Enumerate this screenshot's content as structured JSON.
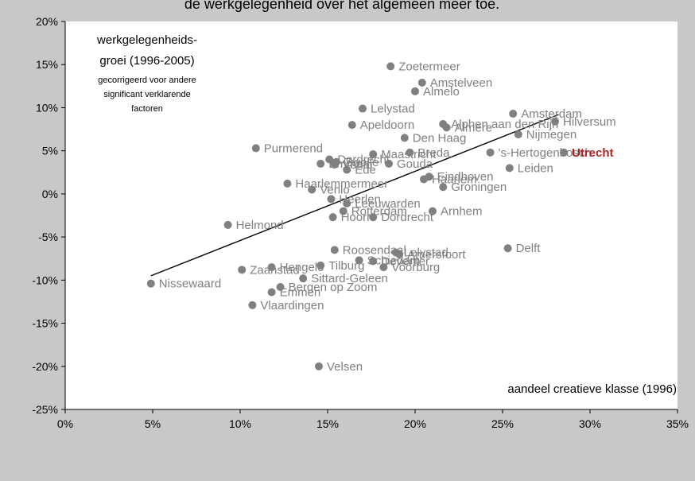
{
  "header_fragment": "de werkgelegenheid over het algemeen meer toe.",
  "annotation": {
    "line1": "werkgelegenheids-",
    "line2": "groei (1996-2005)",
    "note1": "gecorrigeerd voor andere",
    "note2": "significant verklarende",
    "note3": "factoren"
  },
  "colors": {
    "background": "#c8c8c8",
    "plot_area": "#ffffff",
    "point": "#808080",
    "point_label": "#808080",
    "highlight": "#b22222",
    "trendline": "#000000"
  },
  "chart_data": {
    "type": "scatter",
    "xlabel": "aandeel creatieve klasse (1996)",
    "ylabel": "werkgelegenheidsgroei (1996-2005)",
    "xlim": [
      0,
      35
    ],
    "ylim": [
      -25,
      20
    ],
    "x_ticks": [
      "0%",
      "5%",
      "10%",
      "15%",
      "20%",
      "25%",
      "30%",
      "35%"
    ],
    "y_ticks": [
      "20%",
      "15%",
      "10%",
      "5%",
      "0%",
      "-5%",
      "-10%",
      "-15%",
      "-20%",
      "-25%"
    ],
    "grid": false,
    "trendline": {
      "x": [
        4.9,
        28.2
      ],
      "y": [
        -9.5,
        9.2
      ]
    },
    "points": [
      {
        "label": "Zoetermeer",
        "x": 18.6,
        "y": 14.8
      },
      {
        "label": "Amstelveen",
        "x": 20.4,
        "y": 12.9
      },
      {
        "label": "Almelo",
        "x": 20.0,
        "y": 11.9
      },
      {
        "label": "Lelystad",
        "x": 17.0,
        "y": 9.9
      },
      {
        "label": "Alphen aan den Rijn",
        "x": 21.6,
        "y": 8.1
      },
      {
        "label": "Amsterdam",
        "x": 25.6,
        "y": 9.3
      },
      {
        "label": "Hilversum",
        "x": 28.0,
        "y": 8.4
      },
      {
        "label": "Apeldoorn",
        "x": 16.4,
        "y": 8.0
      },
      {
        "label": "Almere",
        "x": 21.8,
        "y": 7.7
      },
      {
        "label": "Nijmegen",
        "x": 25.9,
        "y": 6.9
      },
      {
        "label": "Den Haag",
        "x": 19.4,
        "y": 6.5
      },
      {
        "label": "Purmerend",
        "x": 10.9,
        "y": 5.3
      },
      {
        "label": "Breda",
        "x": 19.7,
        "y": 4.8
      },
      {
        "label": "Maastricht",
        "x": 17.6,
        "y": 4.6
      },
      {
        "label": "'s-Hertogenbosch",
        "x": 24.3,
        "y": 4.8
      },
      {
        "label": "Utrecht",
        "x": 28.5,
        "y": 4.8,
        "highlight": true
      },
      {
        "label": "Dordrecht",
        "x": 15.1,
        "y": 4.0
      },
      {
        "label": "Gouda",
        "x": 18.5,
        "y": 3.5
      },
      {
        "label": "Zwolle",
        "x": 15.5,
        "y": 3.7
      },
      {
        "label": "Leiden",
        "x": 25.4,
        "y": 3.0
      },
      {
        "label": "Ede",
        "x": 16.1,
        "y": 2.8
      },
      {
        "label": "Venlo",
        "x": 15.4,
        "y": 3.4
      },
      {
        "label": "Emmen",
        "x": 14.6,
        "y": 3.5
      },
      {
        "label": "Eindhoven",
        "x": 20.8,
        "y": 2.0
      },
      {
        "label": "Haarlem",
        "x": 20.5,
        "y": 1.7
      },
      {
        "label": "Groningen",
        "x": 21.6,
        "y": 0.8
      },
      {
        "label": "Haarlemmermeer",
        "x": 12.7,
        "y": 1.2
      },
      {
        "label": "Venlo",
        "x": 14.1,
        "y": 0.5
      },
      {
        "label": "Heerlen",
        "x": 15.2,
        "y": -0.6
      },
      {
        "label": "Leeuwarden",
        "x": 16.1,
        "y": -1.1
      },
      {
        "label": "Rotterdam",
        "x": 15.9,
        "y": -2.0
      },
      {
        "label": "Hoorn",
        "x": 15.3,
        "y": -2.7
      },
      {
        "label": "Dordrecht",
        "x": 17.6,
        "y": -2.7
      },
      {
        "label": "Arnhem",
        "x": 21.0,
        "y": -2.0
      },
      {
        "label": "Helmond",
        "x": 9.3,
        "y": -3.6
      },
      {
        "label": "Roosendaal",
        "x": 15.4,
        "y": -6.5
      },
      {
        "label": "Lelystad",
        "x": 18.9,
        "y": -6.8
      },
      {
        "label": "Amersfoort",
        "x": 19.1,
        "y": -7.0
      },
      {
        "label": "Delft",
        "x": 25.3,
        "y": -6.3
      },
      {
        "label": "Deventer",
        "x": 17.6,
        "y": -7.8
      },
      {
        "label": "Schiedam",
        "x": 16.8,
        "y": -7.7
      },
      {
        "label": "Hengelo",
        "x": 11.8,
        "y": -8.5
      },
      {
        "label": "Zaanstad",
        "x": 10.1,
        "y": -8.8
      },
      {
        "label": "Tilburg",
        "x": 14.6,
        "y": -8.3
      },
      {
        "label": "Voorburg",
        "x": 18.2,
        "y": -8.5
      },
      {
        "label": "Sittard-Geleen",
        "x": 13.6,
        "y": -9.8
      },
      {
        "label": "Nissewaard",
        "x": 4.9,
        "y": -10.4
      },
      {
        "label": "Bergen op Zoom",
        "x": 12.3,
        "y": -10.8
      },
      {
        "label": "Emmen",
        "x": 11.8,
        "y": -11.4
      },
      {
        "label": "Vlaardingen",
        "x": 10.7,
        "y": -12.9
      },
      {
        "label": "Velsen",
        "x": 14.5,
        "y": -20.0
      }
    ]
  }
}
